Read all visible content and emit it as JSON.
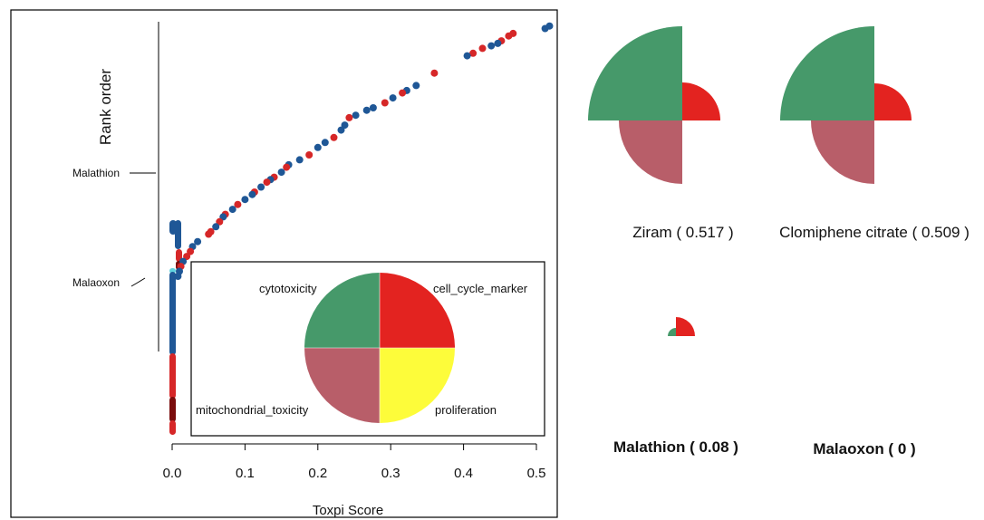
{
  "chart_data": [
    {
      "type": "scatter",
      "xlabel": "Toxpi Score",
      "ylabel": "Rank order",
      "xlim": [
        0.0,
        0.52
      ],
      "x_ticks": [
        "0.0",
        "0.1",
        "0.2",
        "0.3",
        "0.4",
        "0.5"
      ],
      "x_tick_values": [
        0.0,
        0.1,
        0.2,
        0.3,
        0.4,
        0.5
      ],
      "grid": false,
      "colors": {
        "blue": "#1f5796",
        "red": "#d62728",
        "darkred": "#7a0c0c",
        "cyan": "#5fd3df"
      },
      "annotations": [
        {
          "text": "Malathion",
          "score": 0.08
        },
        {
          "text": "Malaoxon",
          "score": 0.0
        }
      ],
      "points_score_vs_rank_fraction": [
        [
          0.518,
          0.995,
          "blue"
        ],
        [
          0.512,
          0.99,
          "blue"
        ],
        [
          0.468,
          0.98,
          "red"
        ],
        [
          0.462,
          0.975,
          "red"
        ],
        [
          0.452,
          0.965,
          "red"
        ],
        [
          0.447,
          0.96,
          "blue"
        ],
        [
          0.438,
          0.955,
          "blue"
        ],
        [
          0.426,
          0.95,
          "red"
        ],
        [
          0.413,
          0.94,
          "red"
        ],
        [
          0.405,
          0.935,
          "blue"
        ],
        [
          0.36,
          0.9,
          "red"
        ],
        [
          0.335,
          0.875,
          "blue"
        ],
        [
          0.322,
          0.865,
          "blue"
        ],
        [
          0.316,
          0.86,
          "red"
        ],
        [
          0.303,
          0.85,
          "blue"
        ],
        [
          0.292,
          0.84,
          "red"
        ],
        [
          0.276,
          0.83,
          "blue"
        ],
        [
          0.267,
          0.825,
          "blue"
        ],
        [
          0.252,
          0.815,
          "blue"
        ],
        [
          0.243,
          0.81,
          "red"
        ],
        [
          0.237,
          0.795,
          "blue"
        ],
        [
          0.232,
          0.785,
          "blue"
        ],
        [
          0.222,
          0.77,
          "red"
        ],
        [
          0.21,
          0.76,
          "blue"
        ],
        [
          0.2,
          0.75,
          "blue"
        ],
        [
          0.188,
          0.735,
          "red"
        ],
        [
          0.175,
          0.725,
          "blue"
        ],
        [
          0.16,
          0.715,
          "blue"
        ],
        [
          0.157,
          0.71,
          "red"
        ],
        [
          0.15,
          0.7,
          "blue"
        ],
        [
          0.14,
          0.69,
          "red"
        ],
        [
          0.135,
          0.685,
          "blue"
        ],
        [
          0.13,
          0.68,
          "red"
        ],
        [
          0.122,
          0.67,
          "blue"
        ],
        [
          0.113,
          0.66,
          "red"
        ],
        [
          0.11,
          0.655,
          "blue"
        ],
        [
          0.1,
          0.645,
          "blue"
        ],
        [
          0.09,
          0.635,
          "red"
        ],
        [
          0.083,
          0.625,
          "blue"
        ],
        [
          0.073,
          0.615,
          "red"
        ],
        [
          0.07,
          0.61,
          "blue"
        ],
        [
          0.065,
          0.6,
          "red"
        ],
        [
          0.06,
          0.59,
          "blue"
        ],
        [
          0.053,
          0.58,
          "red"
        ],
        [
          0.05,
          0.575,
          "red"
        ],
        [
          0.035,
          0.56,
          "blue"
        ],
        [
          0.028,
          0.55,
          "blue"
        ],
        [
          0.025,
          0.54,
          "red"
        ],
        [
          0.02,
          0.53,
          "red"
        ],
        [
          0.015,
          0.52,
          "blue"
        ],
        [
          0.012,
          0.51,
          "red"
        ],
        [
          0.01,
          0.5,
          "blue"
        ],
        [
          0.008,
          0.49,
          "blue"
        ]
      ]
    },
    {
      "type": "pie",
      "title": "",
      "categories": [
        "cytotoxicity",
        "cell_cycle_marker",
        "mitochondrial_toxicity",
        "proliferation"
      ],
      "values": [
        1,
        1,
        1,
        1
      ],
      "colors": [
        "#46996a",
        "#e32320",
        "#b85e69",
        "#fdfc3a"
      ]
    },
    {
      "type": "pie",
      "title": "Ziram  ( 0.517 )",
      "categories": [
        "cytotoxicity",
        "cell_cycle_marker",
        "mitochondrial_toxicity",
        "proliferation"
      ],
      "values": [
        1.0,
        0.4,
        0.7,
        0.0
      ]
    },
    {
      "type": "pie",
      "title": "Clomiphene citrate  ( 0.509 )",
      "categories": [
        "cytotoxicity",
        "cell_cycle_marker",
        "mitochondrial_toxicity",
        "proliferation"
      ],
      "values": [
        1.0,
        0.4,
        0.68,
        0.0
      ]
    },
    {
      "type": "pie",
      "title": "Malathion  ( 0.08 )",
      "categories": [
        "cytotoxicity",
        "cell_cycle_marker",
        "mitochondrial_toxicity",
        "proliferation"
      ],
      "values": [
        0.1,
        0.16,
        0.0,
        0.0
      ]
    },
    {
      "type": "pie",
      "title": "Malaoxon  ( 0 )",
      "categories": [
        "cytotoxicity",
        "cell_cycle_marker",
        "mitochondrial_toxicity",
        "proliferation"
      ],
      "values": [
        0,
        0,
        0,
        0
      ]
    }
  ],
  "labels": {
    "ylabel": "Rank order",
    "xlabel": "Toxpi Score",
    "malathion": "Malathion",
    "malaoxon": "Malaoxon",
    "legend_cytotoxicity": "cytotoxicity",
    "legend_cell_cycle": "cell_cycle_marker",
    "legend_mito": "mitochondrial_toxicity",
    "legend_prolif": "proliferation",
    "ziram": "Ziram  ( 0.517 )",
    "clomiphene": "Clomiphene citrate  ( 0.509 )",
    "malathion_pie": "Malathion  ( 0.08 )",
    "malaoxon_pie": "Malaoxon  ( 0 )"
  }
}
